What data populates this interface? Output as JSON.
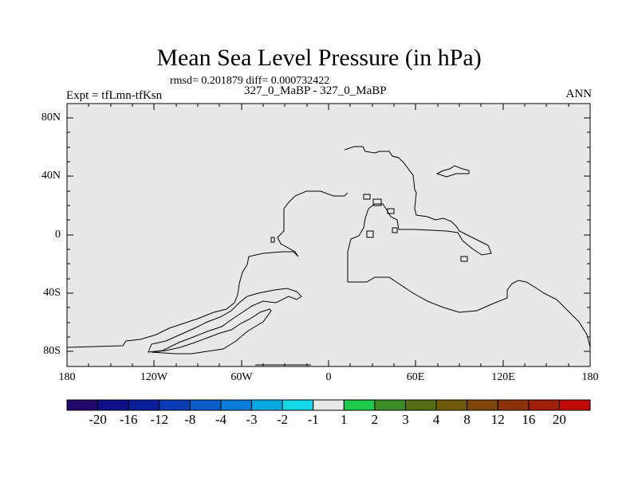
{
  "figure": {
    "title": "Mean Sea Level Pressure (in hPa)",
    "stats": "rmsd= 0.201879 diff= 0.000732422",
    "experiment": "Expt = tfLmn-tfKsn",
    "cases": "327_0_MaBP - 327_0_MaBP",
    "season": "ANN"
  },
  "map": {
    "projection": "cylindrical equidistant",
    "lon_range": [
      -180,
      180
    ],
    "lat_range": [
      -90,
      90
    ],
    "field_fill_color": "#e8e8e8",
    "coastline_color": "#000000",
    "lat_labels": [
      "80N",
      "40N",
      "0",
      "40S",
      "80S"
    ],
    "lon_labels": [
      "180",
      "120W",
      "60W",
      "0",
      "60E",
      "120E",
      "180"
    ]
  },
  "colorbar": {
    "colors": [
      "#1f0a6b",
      "#0f0f8a",
      "#0a1e9a",
      "#0a3ab4",
      "#0a5cc8",
      "#0a7cd8",
      "#0aa8e0",
      "#14d8e6",
      "#e8e8e8",
      "#1ec84a",
      "#3c8c28",
      "#556b14",
      "#6e5a0a",
      "#7d460a",
      "#8c320a",
      "#a0200a",
      "#c00a0a"
    ],
    "labels": [
      "-20",
      "-16",
      "-12",
      "-8",
      "-4",
      "-3",
      "-2",
      "-1",
      "1",
      "2",
      "3",
      "4",
      "8",
      "12",
      "16",
      "20"
    ]
  }
}
